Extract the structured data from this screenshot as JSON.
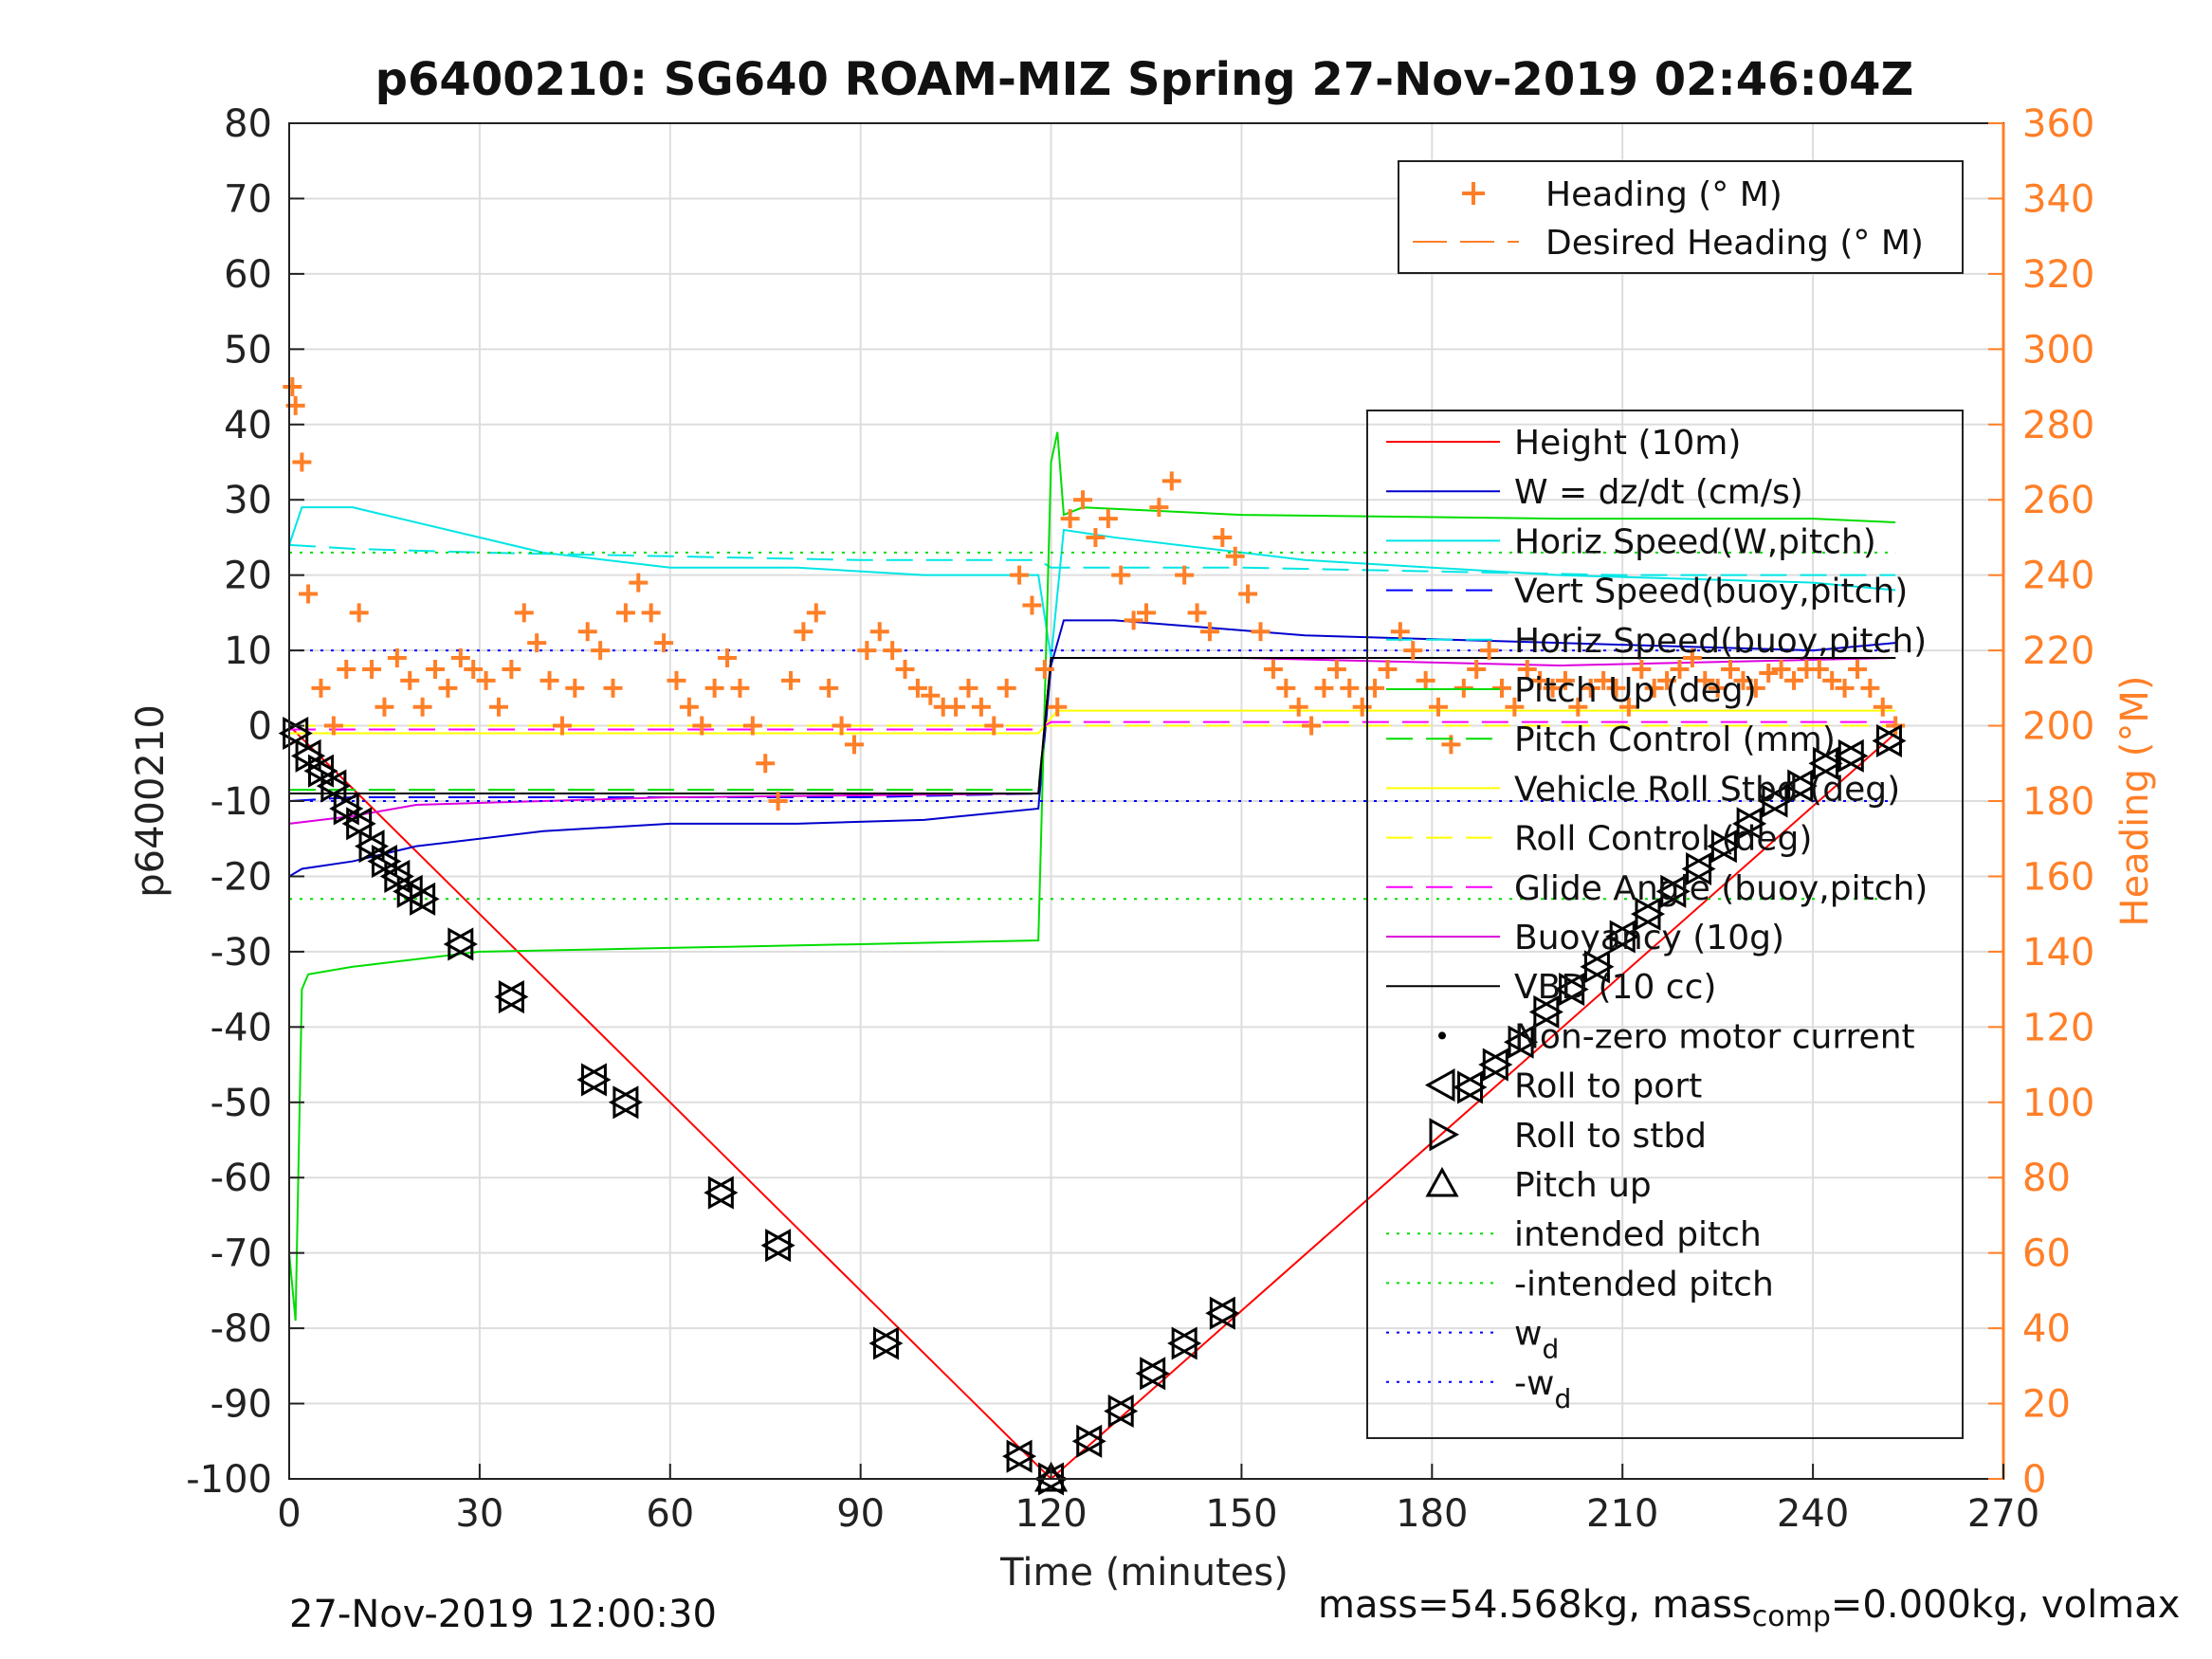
{
  "chart_data": {
    "type": "line",
    "title": "p6400210: SG640 ROAM-MIZ Spring 27-Nov-2019 02:46:04Z",
    "xlabel": "Time (minutes)",
    "ylabel_left": "p6400210",
    "ylabel_right": "Heading (°M)",
    "xlim": [
      0,
      270
    ],
    "ylim_left": [
      -100,
      80
    ],
    "ylim_right": [
      0,
      360
    ],
    "x_ticks": [
      0,
      30,
      60,
      90,
      120,
      150,
      180,
      210,
      240,
      270
    ],
    "y_ticks_left": [
      -100,
      -90,
      -80,
      -70,
      -60,
      -50,
      -40,
      -30,
      -20,
      -10,
      0,
      10,
      20,
      30,
      40,
      50,
      60,
      70,
      80
    ],
    "y_ticks_right": [
      0,
      20,
      40,
      60,
      80,
      100,
      120,
      140,
      160,
      180,
      200,
      220,
      240,
      260,
      280,
      300,
      320,
      340,
      360
    ],
    "grid": true,
    "colors": {
      "height": "#ff0000",
      "w": "#0000cc",
      "horiz_speed": "#00e5e5",
      "vert_speed": "#0000ff",
      "pitch": "#00dd00",
      "roll": "#ffff00",
      "glide": "#ff00ff",
      "buoyancy": "#dd00dd",
      "vbd": "#000000",
      "heading": "#ff7f27",
      "right_axis": "#ff7f27"
    },
    "legend_top": {
      "placement": "top-right",
      "entries": [
        "Heading (° M)",
        "Desired Heading (° M)"
      ]
    },
    "legend_main": {
      "placement": "right",
      "entries": [
        "Height (10m)",
        "W = dz/dt (cm/s)",
        "Horiz Speed(W,pitch)",
        "Vert Speed(buoy,pitch)",
        "Horiz Speed(buoy,pitch)",
        "Pitch Up (deg)",
        "Pitch Control (mm)",
        "Vehicle Roll Stbd (deg)",
        "Roll Control (deg)",
        "Glide Angle (buoy,pitch)",
        "Buoyancy (10g)",
        "VBD (10 cc)",
        "Non-zero motor current",
        "Roll to port",
        "Roll to stbd",
        "Pitch up",
        "intended pitch",
        "-intended pitch",
        "w",
        "-w"
      ],
      "subscript": "d"
    },
    "series": [
      {
        "name": "Height (10m)",
        "x": [
          0,
          120,
          253
        ],
        "y": [
          0,
          -100,
          -1
        ]
      },
      {
        "name": "W = dz/dt (cm/s)",
        "x": [
          0,
          2,
          10,
          20,
          40,
          60,
          80,
          100,
          118,
          120,
          122,
          130,
          160,
          200,
          240,
          253
        ],
        "y": [
          -20,
          -19,
          -18,
          -16,
          -14,
          -13,
          -13,
          -12.5,
          -11,
          8,
          14,
          14,
          12,
          11,
          10,
          11
        ]
      },
      {
        "name": "Horiz Speed(W,pitch)",
        "x": [
          0,
          2,
          10,
          20,
          40,
          60,
          80,
          100,
          118,
          120,
          122,
          130,
          160,
          200,
          240,
          253
        ],
        "y": [
          24,
          29,
          29,
          27,
          23,
          21,
          21,
          20,
          20,
          9,
          26,
          25,
          22,
          20,
          19,
          18
        ]
      },
      {
        "name": "Vert Speed(buoy,pitch)",
        "x": [
          0,
          10,
          30,
          60,
          90,
          118,
          120,
          150,
          180,
          210,
          240,
          253
        ],
        "y": [
          -10,
          -9.5,
          -9.5,
          -9.5,
          -9.5,
          -9,
          9,
          9,
          9,
          9,
          9,
          9
        ]
      },
      {
        "name": "Horiz Speed(buoy,pitch)",
        "x": [
          0,
          10,
          30,
          60,
          90,
          118,
          120,
          150,
          180,
          210,
          240,
          253
        ],
        "y": [
          24,
          23.5,
          23,
          22.5,
          22,
          22,
          21,
          21,
          20.5,
          20,
          20,
          20
        ]
      },
      {
        "name": "Pitch Up (deg)",
        "x": [
          0,
          1,
          2,
          3,
          10,
          30,
          60,
          90,
          118,
          120,
          121,
          122,
          125,
          150,
          200,
          240,
          253
        ],
        "y": [
          -70,
          -79,
          -35,
          -33,
          -32,
          -30,
          -29.5,
          -29,
          -28.5,
          35,
          39,
          28,
          29,
          28,
          27.5,
          27.5,
          27
        ]
      },
      {
        "name": "Pitch Control (mm)",
        "x": [
          0,
          10,
          60,
          118,
          120,
          160,
          210,
          253
        ],
        "y": [
          -8.5,
          -8.5,
          -8.5,
          -8.5,
          9,
          9,
          9,
          9
        ]
      },
      {
        "name": "Vehicle Roll Stbd (deg)",
        "x": [
          0,
          30,
          60,
          90,
          118,
          121,
          150,
          200,
          253
        ],
        "y": [
          -1,
          -1,
          -1,
          -1,
          -1,
          2,
          2,
          2,
          2
        ]
      },
      {
        "name": "Roll Control (deg)",
        "x": [
          0,
          253
        ],
        "y": [
          0,
          0
        ]
      },
      {
        "name": "Glide Angle (buoy,pitch)",
        "x": [
          0,
          118,
          120,
          253
        ],
        "y": [
          -0.5,
          -0.5,
          0.5,
          0.5
        ]
      },
      {
        "name": "Buoyancy (10g)",
        "x": [
          0,
          10,
          20,
          40,
          60,
          118,
          120,
          150,
          200,
          253
        ],
        "y": [
          -13,
          -12,
          -10.5,
          -10,
          -9.5,
          -9,
          9,
          9,
          8,
          9
        ]
      },
      {
        "name": "VBD (10 cc)",
        "x": [
          0,
          118,
          120,
          253
        ],
        "y": [
          -9,
          -9,
          9,
          9
        ]
      },
      {
        "name": "intended pitch",
        "x": [
          0,
          253
        ],
        "y": [
          23,
          23
        ]
      },
      {
        "name": "-intended pitch",
        "x": [
          0,
          253
        ],
        "y": [
          -23,
          -23
        ]
      },
      {
        "name": "w",
        "x": [
          0,
          253
        ],
        "y": [
          10,
          10
        ]
      },
      {
        "name": "-w",
        "x": [
          0,
          253
        ],
        "y": [
          -10,
          -10
        ]
      },
      {
        "name": "Heading (° M)",
        "axis": "right",
        "x": [
          0.5,
          1,
          2,
          3,
          5,
          7,
          9,
          11,
          13,
          15,
          17,
          19,
          21,
          23,
          25,
          27,
          29,
          31,
          33,
          35,
          37,
          39,
          41,
          43,
          45,
          47,
          49,
          51,
          53,
          55,
          57,
          59,
          61,
          63,
          65,
          67,
          69,
          71,
          73,
          75,
          77,
          79,
          81,
          83,
          85,
          87,
          89,
          91,
          93,
          95,
          97,
          99,
          101,
          103,
          105,
          107,
          109,
          111,
          113,
          115,
          117,
          119,
          121,
          123,
          125,
          127,
          129,
          131,
          133,
          135,
          137,
          139,
          141,
          143,
          145,
          147,
          149,
          151,
          153,
          155,
          157,
          159,
          161,
          163,
          165,
          167,
          169,
          171,
          173,
          175,
          177,
          179,
          181,
          183,
          185,
          187,
          189,
          191,
          193,
          195,
          197,
          199,
          201,
          203,
          205,
          207,
          209,
          211,
          213,
          215,
          217,
          219,
          221,
          223,
          225,
          227,
          229,
          231,
          233,
          235,
          237,
          239,
          241,
          243,
          245,
          247,
          249,
          251,
          253
        ],
        "y": [
          290,
          285,
          270,
          235,
          210,
          200,
          215,
          230,
          215,
          205,
          218,
          212,
          205,
          215,
          210,
          218,
          215,
          212,
          205,
          215,
          230,
          222,
          212,
          200,
          210,
          225,
          220,
          210,
          230,
          238,
          230,
          222,
          212,
          205,
          200,
          210,
          218,
          210,
          200,
          190,
          180,
          212,
          225,
          230,
          210,
          200,
          195,
          220,
          225,
          220,
          215,
          210,
          208,
          205,
          205,
          210,
          205,
          200,
          210,
          240,
          232,
          215,
          205,
          255,
          260,
          250,
          255,
          240,
          228,
          230,
          258,
          265,
          240,
          230,
          225,
          250,
          245,
          235,
          225,
          215,
          210,
          205,
          200,
          210,
          215,
          210,
          205,
          210,
          215,
          225,
          220,
          212,
          205,
          195,
          210,
          215,
          220,
          210,
          205,
          215,
          212,
          210,
          212,
          205,
          210,
          212,
          210,
          205,
          215,
          210,
          212,
          215,
          218,
          212,
          210,
          215,
          212,
          210,
          214,
          215,
          212,
          215,
          215,
          212,
          210,
          215,
          210,
          205,
          200
        ]
      },
      {
        "name": "Roll to port",
        "marker": "triangle-left",
        "x": [
          1,
          3,
          5,
          7,
          9,
          11,
          13,
          15,
          17,
          19,
          21,
          27,
          35,
          48,
          53,
          68,
          77,
          94,
          115,
          120,
          126,
          131,
          136,
          141,
          147,
          186,
          190,
          194,
          198,
          202,
          206,
          210,
          214,
          218,
          222,
          226,
          230,
          234,
          238,
          242,
          246,
          252
        ],
        "y": [
          -1,
          -4,
          -6,
          -8,
          -11,
          -13,
          -16,
          -18,
          -20,
          -22,
          -23,
          -29,
          -36,
          -47,
          -50,
          -62,
          -69,
          -82,
          -97,
          -100,
          -95,
          -91,
          -86,
          -82,
          -78,
          -48,
          -45,
          -42,
          -38,
          -35,
          -32,
          -28,
          -25,
          -22,
          -19,
          -16,
          -13,
          -10,
          -8,
          -5,
          -4,
          -2
        ]
      },
      {
        "name": "Roll to stbd",
        "marker": "triangle-right",
        "x": [
          1,
          3,
          5,
          7,
          9,
          11,
          13,
          15,
          17,
          19,
          21,
          27,
          35,
          48,
          53,
          68,
          77,
          94,
          115,
          120,
          126,
          131,
          136,
          141,
          147,
          186,
          190,
          194,
          198,
          202,
          206,
          210,
          214,
          218,
          222,
          226,
          230,
          234,
          238,
          242,
          246,
          252
        ],
        "y": [
          -1,
          -4,
          -6,
          -8,
          -11,
          -13,
          -16,
          -18,
          -20,
          -22,
          -23,
          -29,
          -36,
          -47,
          -50,
          -62,
          -69,
          -82,
          -97,
          -100,
          -95,
          -91,
          -86,
          -82,
          -78,
          -48,
          -45,
          -42,
          -38,
          -35,
          -32,
          -28,
          -25,
          -22,
          -19,
          -16,
          -13,
          -10,
          -8,
          -5,
          -4,
          -2
        ]
      },
      {
        "name": "Pitch up",
        "marker": "triangle-up",
        "x": [
          120
        ],
        "y": [
          -100
        ]
      }
    ]
  },
  "footer": {
    "timestamp": "27-Nov-2019 12:00:30",
    "mass_prefix": "mass=54.568kg, mass",
    "mass_sub": "comp",
    "mass_suffix": "=0.000kg, volmax"
  }
}
